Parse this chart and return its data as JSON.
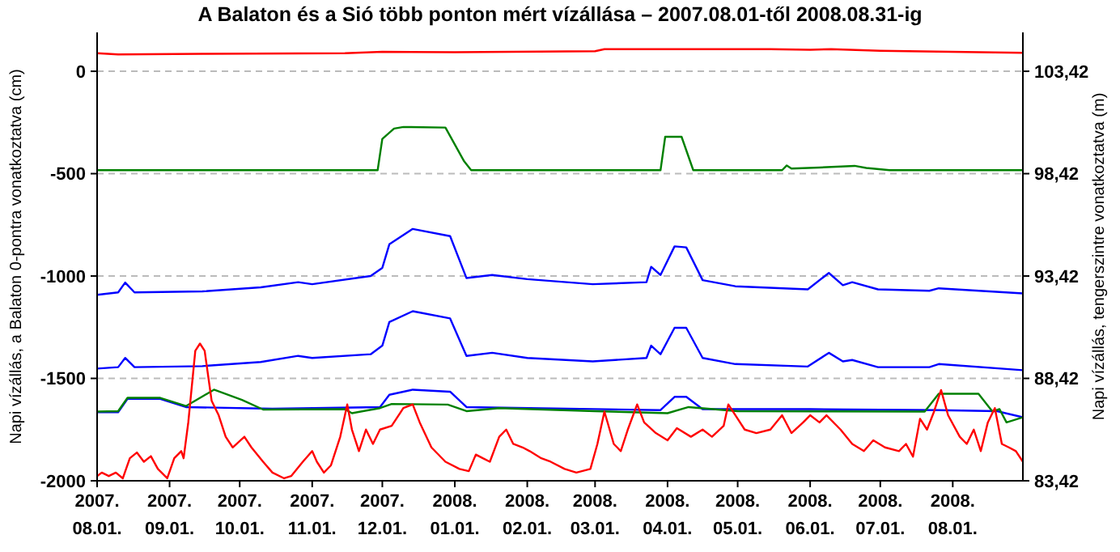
{
  "chart_data": {
    "type": "line",
    "title": "A Balaton és a Sió több ponton mért vízállása – 2007.08.01-től 2008.08.31-ig",
    "ylabel": "Napi vízállás, a Balaton 0-pontra vonatkoztatva (cm)",
    "y2label": "Napi vízállás, tengerszintre vonatkoztatva (m)",
    "xlim": [
      "2007-08-01",
      "2008-08-31"
    ],
    "xticks": [
      {
        "value": "2007-08-01",
        "label": "2007.\n08.01."
      },
      {
        "value": "2007-09-01",
        "label": "2007.\n09.01."
      },
      {
        "value": "2007-10-01",
        "label": "2007.\n10.01."
      },
      {
        "value": "2007-11-01",
        "label": "2007.\n11.01."
      },
      {
        "value": "2007-12-01",
        "label": "2007.\n12.01."
      },
      {
        "value": "2008-01-01",
        "label": "2008.\n01.01."
      },
      {
        "value": "2008-02-01",
        "label": "2008.\n02.01."
      },
      {
        "value": "2008-03-01",
        "label": "2008.\n03.01."
      },
      {
        "value": "2008-04-01",
        "label": "2008.\n04.01."
      },
      {
        "value": "2008-05-01",
        "label": "2008.\n05.01."
      },
      {
        "value": "2008-06-01",
        "label": "2008.\n06.01."
      },
      {
        "value": "2008-07-01",
        "label": "2008.\n07.01."
      },
      {
        "value": "2008-08-01",
        "label": "2008.\n08.01."
      }
    ],
    "ylim": [
      -2000,
      190
    ],
    "yticks": [
      -2000,
      -1500,
      -1000,
      -500,
      0
    ],
    "y2lim": [
      83.42,
      105.32
    ],
    "y2ticks": [
      {
        "value": 83.42,
        "label": "83,42"
      },
      {
        "value": 88.42,
        "label": "88,42"
      },
      {
        "value": 93.42,
        "label": "93,42"
      },
      {
        "value": 98.42,
        "label": "98,42"
      },
      {
        "value": 103.42,
        "label": "103,42"
      }
    ],
    "grid": "y",
    "marker": "none",
    "line_style": "solid",
    "series": [
      {
        "color": "#ff0000",
        "x": [
          "2007-08-01",
          "2007-08-10",
          "2007-09-15",
          "2007-11-15",
          "2007-12-01",
          "2008-01-01",
          "2008-03-01",
          "2008-03-05",
          "2008-05-15",
          "2008-06-01",
          "2008-06-10",
          "2008-07-01",
          "2008-08-31"
        ],
        "values": [
          88,
          82,
          85,
          88,
          95,
          93,
          98,
          108,
          108,
          105,
          108,
          100,
          90
        ]
      },
      {
        "color": "#008000",
        "x": [
          "2007-08-01",
          "2007-11-29",
          "2007-12-01",
          "2007-12-06",
          "2007-12-10",
          "2007-12-28",
          "2008-01-05",
          "2008-01-08",
          "2008-03-29",
          "2008-03-31",
          "2008-04-07",
          "2008-04-12",
          "2008-05-20",
          "2008-05-22",
          "2008-05-24",
          "2008-06-05",
          "2008-06-20",
          "2008-06-25",
          "2008-07-05",
          "2008-08-31"
        ],
        "values": [
          -483,
          -483,
          -330,
          -280,
          -272,
          -275,
          -440,
          -483,
          -483,
          -320,
          -320,
          -483,
          -483,
          -460,
          -475,
          -470,
          -462,
          -472,
          -483,
          -483
        ]
      },
      {
        "color": "#0000ff",
        "x": [
          "2007-08-01",
          "2007-08-10",
          "2007-08-13",
          "2007-08-17",
          "2007-09-15",
          "2007-10-10",
          "2007-10-26",
          "2007-11-01",
          "2007-11-26",
          "2007-12-01",
          "2007-12-04",
          "2007-12-14",
          "2007-12-30",
          "2008-01-06",
          "2008-01-17",
          "2008-02-01",
          "2008-02-29",
          "2008-03-23",
          "2008-03-25",
          "2008-03-29",
          "2008-04-04",
          "2008-04-09",
          "2008-04-16",
          "2008-04-30",
          "2008-05-31",
          "2008-06-09",
          "2008-06-15",
          "2008-06-19",
          "2008-06-30",
          "2008-07-22",
          "2008-07-26",
          "2008-08-31"
        ],
        "values": [
          -1092,
          -1080,
          -1032,
          -1080,
          -1075,
          -1055,
          -1030,
          -1040,
          -1000,
          -960,
          -845,
          -770,
          -805,
          -1010,
          -995,
          -1015,
          -1040,
          -1030,
          -955,
          -995,
          -855,
          -860,
          -1020,
          -1050,
          -1065,
          -985,
          -1045,
          -1030,
          -1065,
          -1072,
          -1060,
          -1085
        ]
      },
      {
        "color": "#0000ff",
        "x": [
          "2007-08-01",
          "2007-08-10",
          "2007-08-13",
          "2007-08-17",
          "2007-09-15",
          "2007-10-10",
          "2007-10-26",
          "2007-11-01",
          "2007-11-26",
          "2007-12-01",
          "2007-12-04",
          "2007-12-14",
          "2007-12-30",
          "2008-01-06",
          "2008-01-17",
          "2008-02-01",
          "2008-02-29",
          "2008-03-23",
          "2008-03-25",
          "2008-03-29",
          "2008-04-04",
          "2008-04-09",
          "2008-04-16",
          "2008-04-30",
          "2008-05-31",
          "2008-06-09",
          "2008-06-15",
          "2008-06-19",
          "2008-06-30",
          "2008-07-22",
          "2008-07-26",
          "2008-08-31"
        ],
        "values": [
          -1452,
          -1445,
          -1400,
          -1445,
          -1440,
          -1420,
          -1390,
          -1400,
          -1382,
          -1340,
          -1225,
          -1172,
          -1207,
          -1390,
          -1375,
          -1400,
          -1417,
          -1400,
          -1340,
          -1382,
          -1253,
          -1253,
          -1400,
          -1430,
          -1442,
          -1375,
          -1417,
          -1410,
          -1445,
          -1445,
          -1430,
          -1460
        ]
      },
      {
        "color": "#0000ff",
        "x": [
          "2007-08-01",
          "2007-08-10",
          "2007-08-14",
          "2007-08-28",
          "2007-09-08",
          "2007-10-15",
          "2007-11-30",
          "2007-12-04",
          "2007-12-14",
          "2007-12-30",
          "2008-01-06",
          "2008-03-29",
          "2008-04-04",
          "2008-04-09",
          "2008-04-16",
          "2008-06-01",
          "2008-07-26",
          "2008-08-20",
          "2008-08-31"
        ],
        "values": [
          -1665,
          -1665,
          -1600,
          -1600,
          -1640,
          -1648,
          -1640,
          -1580,
          -1555,
          -1565,
          -1640,
          -1655,
          -1590,
          -1590,
          -1650,
          -1650,
          -1655,
          -1660,
          -1690
        ]
      },
      {
        "color": "#008000",
        "x": [
          "2007-08-01",
          "2007-08-10",
          "2007-08-14",
          "2007-08-28",
          "2007-09-08",
          "2007-09-20",
          "2007-10-02",
          "2007-10-11",
          "2007-11-15",
          "2007-11-18",
          "2007-11-30",
          "2007-12-05",
          "2007-12-29",
          "2008-01-06",
          "2008-01-20",
          "2008-03-01",
          "2008-04-01",
          "2008-04-10",
          "2008-05-01",
          "2008-07-20",
          "2008-07-26",
          "2008-08-12",
          "2008-08-18",
          "2008-08-21",
          "2008-08-24",
          "2008-08-31"
        ],
        "values": [
          -1662,
          -1660,
          -1595,
          -1595,
          -1635,
          -1555,
          -1605,
          -1652,
          -1650,
          -1670,
          -1645,
          -1625,
          -1628,
          -1660,
          -1645,
          -1660,
          -1670,
          -1640,
          -1660,
          -1662,
          -1575,
          -1575,
          -1662,
          -1650,
          -1715,
          -1690
        ]
      },
      {
        "color": "#ff0000",
        "x": [
          "2007-08-01",
          "2007-08-03",
          "2007-08-06",
          "2007-08-09",
          "2007-08-12",
          "2007-08-15",
          "2007-08-18",
          "2007-08-21",
          "2007-08-24",
          "2007-08-27",
          "2007-08-31",
          "2007-09-03",
          "2007-09-06",
          "2007-09-07",
          "2007-09-09",
          "2007-09-12",
          "2007-09-14",
          "2007-09-16",
          "2007-09-19",
          "2007-09-22",
          "2007-09-25",
          "2007-09-28",
          "2007-10-03",
          "2007-10-06",
          "2007-10-11",
          "2007-10-15",
          "2007-10-20",
          "2007-10-23",
          "2007-10-28",
          "2007-11-01",
          "2007-11-03",
          "2007-11-06",
          "2007-11-09",
          "2007-11-13",
          "2007-11-16",
          "2007-11-18",
          "2007-11-21",
          "2007-11-24",
          "2007-11-27",
          "2007-11-30",
          "2007-12-05",
          "2007-12-10",
          "2007-12-14",
          "2007-12-17",
          "2007-12-22",
          "2007-12-28",
          "2008-01-03",
          "2008-01-07",
          "2008-01-10",
          "2008-01-13",
          "2008-01-16",
          "2008-01-20",
          "2008-01-23",
          "2008-01-26",
          "2008-01-30",
          "2008-02-02",
          "2008-02-07",
          "2008-02-11",
          "2008-02-17",
          "2008-02-22",
          "2008-02-28",
          "2008-03-02",
          "2008-03-05",
          "2008-03-09",
          "2008-03-12",
          "2008-03-15",
          "2008-03-19",
          "2008-03-22",
          "2008-03-27",
          "2008-04-01",
          "2008-04-05",
          "2008-04-11",
          "2008-04-16",
          "2008-04-20",
          "2008-04-25",
          "2008-04-27",
          "2008-05-01",
          "2008-05-04",
          "2008-05-09",
          "2008-05-15",
          "2008-05-20",
          "2008-05-24",
          "2008-05-29",
          "2008-06-01",
          "2008-06-05",
          "2008-06-08",
          "2008-06-14",
          "2008-06-19",
          "2008-06-24",
          "2008-06-28",
          "2008-07-03",
          "2008-07-09",
          "2008-07-12",
          "2008-07-15",
          "2008-07-18",
          "2008-07-21",
          "2008-07-24",
          "2008-07-27",
          "2008-07-30",
          "2008-08-04",
          "2008-08-07",
          "2008-08-10",
          "2008-08-13",
          "2008-08-16",
          "2008-08-19",
          "2008-08-22",
          "2008-08-25",
          "2008-08-28",
          "2008-08-31"
        ],
        "values": [
          -1977,
          -1960,
          -1977,
          -1960,
          -1988,
          -1890,
          -1862,
          -1907,
          -1880,
          -1942,
          -1988,
          -1890,
          -1855,
          -1890,
          -1715,
          -1365,
          -1330,
          -1365,
          -1610,
          -1680,
          -1785,
          -1837,
          -1785,
          -1837,
          -1907,
          -1960,
          -1988,
          -1977,
          -1907,
          -1855,
          -1907,
          -1960,
          -1925,
          -1785,
          -1627,
          -1750,
          -1855,
          -1750,
          -1820,
          -1750,
          -1732,
          -1645,
          -1627,
          -1715,
          -1837,
          -1907,
          -1942,
          -1953,
          -1872,
          -1890,
          -1907,
          -1785,
          -1750,
          -1820,
          -1837,
          -1855,
          -1890,
          -1907,
          -1942,
          -1960,
          -1942,
          -1820,
          -1662,
          -1820,
          -1855,
          -1750,
          -1627,
          -1715,
          -1767,
          -1802,
          -1743,
          -1785,
          -1750,
          -1785,
          -1732,
          -1627,
          -1697,
          -1750,
          -1767,
          -1750,
          -1680,
          -1767,
          -1715,
          -1680,
          -1715,
          -1680,
          -1750,
          -1820,
          -1855,
          -1802,
          -1837,
          -1855,
          -1820,
          -1882,
          -1697,
          -1750,
          -1662,
          -1557,
          -1680,
          -1785,
          -1820,
          -1750,
          -1855,
          -1715,
          -1645,
          -1820,
          -1837,
          -1855,
          -1907
        ]
      }
    ]
  }
}
